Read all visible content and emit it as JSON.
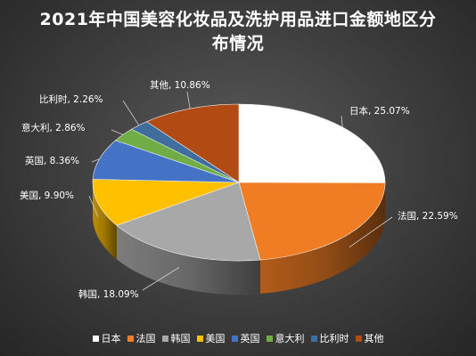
{
  "chart_data": {
    "type": "pie",
    "title": "2021年中国美容化妆品及洗护用品进口金额地区分布情况",
    "categories": [
      "日本",
      "法国",
      "韩国",
      "美国",
      "英国",
      "意大利",
      "比利时",
      "其他"
    ],
    "values": [
      25.07,
      22.59,
      18.09,
      9.9,
      8.36,
      2.86,
      2.26,
      10.86
    ],
    "data_labels": [
      "日本, 25.07%",
      "法国, 22.59%",
      "韩国, 18.09%",
      "美国, 9.90%",
      "英国, 8.36%",
      "意大利, 2.86%",
      "比利时, 2.26%",
      "其他, 10.86%"
    ],
    "colors": [
      "#ffffff",
      "#f07c23",
      "#a8a8a8",
      "#ffc000",
      "#4473c5",
      "#70ad47",
      "#3f6d9e",
      "#b24a14"
    ],
    "legend_position": "bottom",
    "style": "3d"
  }
}
